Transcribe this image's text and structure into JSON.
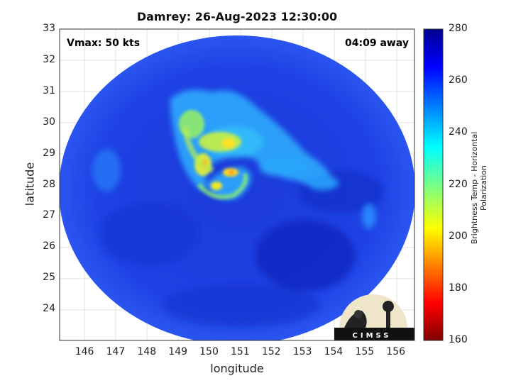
{
  "title": "Damrey: 26-Aug-2023 12:30:00",
  "annotations": {
    "vmax": "Vmax: 50 kts",
    "away": "04:09 away"
  },
  "axes": {
    "xlabel": "longitude",
    "ylabel": "latitude",
    "xlim": [
      145.2,
      156.6
    ],
    "ylim": [
      23.0,
      33.0
    ],
    "xticks": [
      "146",
      "147",
      "148",
      "149",
      "150",
      "151",
      "152",
      "153",
      "154",
      "155",
      "156"
    ],
    "yticks": [
      "24",
      "25",
      "26",
      "27",
      "28",
      "29",
      "30",
      "31",
      "32",
      "33"
    ]
  },
  "colorbar": {
    "label": "Brightness Temp - Horizontal Polarization",
    "range": [
      160,
      280
    ],
    "ticks": [
      "280",
      "260",
      "240",
      "220",
      "200",
      "180",
      "160"
    ],
    "colormap": "jet"
  },
  "logo": {
    "text": "CIMSS"
  },
  "colors": {
    "ocean": "#1e3de0",
    "deep": "#1528c8",
    "band": "#35c8ff",
    "core": "#f8e020"
  }
}
